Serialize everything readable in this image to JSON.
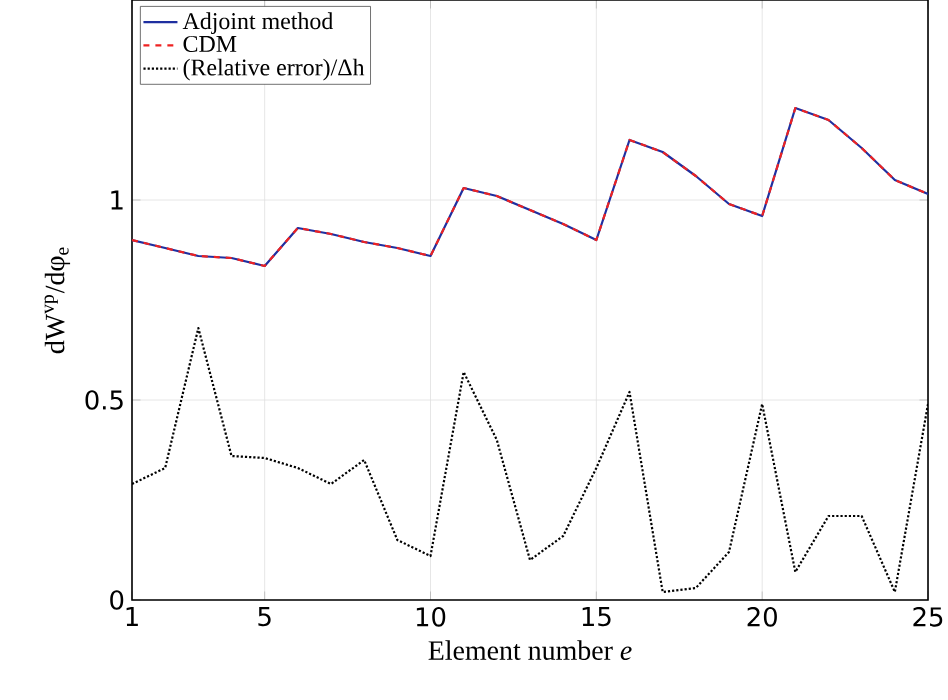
{
  "chart_data": {
    "type": "line",
    "xlabel": "Element number *e*",
    "ylabel": "dW$^{vp}$/dφ$_{e}$",
    "x": [
      1,
      2,
      3,
      4,
      5,
      6,
      7,
      8,
      9,
      10,
      11,
      12,
      13,
      14,
      15,
      16,
      17,
      18,
      19,
      20,
      21,
      22,
      23,
      24,
      25
    ],
    "series": [
      {
        "name": "Adjoint method",
        "color": "#1f2fa0",
        "line_style": "solid",
        "values": [
          0.9,
          0.88,
          0.86,
          0.855,
          0.835,
          0.93,
          0.915,
          0.895,
          0.88,
          0.86,
          1.03,
          1.01,
          0.975,
          0.94,
          0.9,
          1.15,
          1.12,
          1.06,
          0.99,
          0.96,
          1.23,
          1.2,
          1.13,
          1.05,
          1.015
        ]
      },
      {
        "name": "CDM",
        "color": "#ee2222",
        "line_style": "dashed",
        "values": [
          0.9,
          0.88,
          0.86,
          0.855,
          0.835,
          0.93,
          0.915,
          0.895,
          0.88,
          0.86,
          1.03,
          1.01,
          0.975,
          0.94,
          0.9,
          1.15,
          1.12,
          1.06,
          0.99,
          0.96,
          1.23,
          1.2,
          1.13,
          1.05,
          1.015
        ]
      },
      {
        "name": "(Relative error)/Δh",
        "color": "#000000",
        "line_style": "dotted",
        "values": [
          0.29,
          0.33,
          0.68,
          0.36,
          0.355,
          0.33,
          0.29,
          0.35,
          0.15,
          0.11,
          0.57,
          0.4,
          0.1,
          0.16,
          0.33,
          0.52,
          0.02,
          0.03,
          0.12,
          0.49,
          0.07,
          0.21,
          0.21,
          0.02,
          0.49
        ]
      }
    ],
    "xlim": [
      1,
      25
    ],
    "ylim": [
      0,
      1.5
    ],
    "xticks": [
      1,
      5,
      10,
      15,
      20,
      25
    ],
    "yticks": [
      0,
      0.5,
      1
    ],
    "grid": true,
    "legend": "top left"
  }
}
